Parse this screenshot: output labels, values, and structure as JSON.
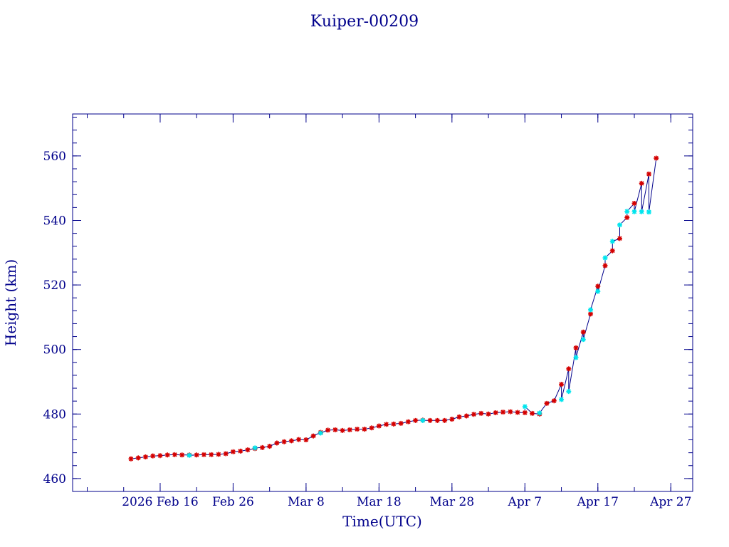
{
  "chart_data": {
    "type": "line",
    "title": "Kuiper-00209",
    "xlabel": "Time(UTC)",
    "ylabel": "Height (km)",
    "x_tick_labels": [
      "2026 Feb 16",
      "Feb 26",
      "Mar  8",
      "Mar 18",
      "Mar 28",
      "Apr  7",
      "Apr 17",
      "Apr 27"
    ],
    "x_tick_dates": [
      "2026-02-16",
      "2026-02-26",
      "2026-03-08",
      "2026-03-18",
      "2026-03-28",
      "2026-04-07",
      "2026-04-17",
      "2026-04-27"
    ],
    "xlim": [
      "2026-02-04",
      "2026-04-30"
    ],
    "y_ticks": [
      460,
      480,
      500,
      520,
      540,
      560
    ],
    "ylim": [
      456,
      573
    ],
    "grid": false,
    "colors": {
      "frame": "#00008b",
      "line": "#00008b",
      "marker_primary": "#d40000",
      "marker_secondary": "#00e5ee"
    },
    "series": [
      {
        "marker_color": "red",
        "points": [
          [
            "2026-02-12",
            466.1
          ],
          [
            "2026-02-13",
            466.4
          ],
          [
            "2026-02-14",
            466.7
          ],
          [
            "2026-02-15",
            467.0
          ],
          [
            "2026-02-16",
            467.1
          ],
          [
            "2026-02-17",
            467.3
          ],
          [
            "2026-02-18",
            467.4
          ],
          [
            "2026-02-19",
            467.3
          ],
          [
            "2026-02-20",
            467.3
          ],
          [
            "2026-02-21",
            467.3
          ],
          [
            "2026-02-22",
            467.4
          ],
          [
            "2026-02-23",
            467.4
          ],
          [
            "2026-02-24",
            467.5
          ],
          [
            "2026-02-25",
            467.7
          ],
          [
            "2026-02-26",
            468.3
          ],
          [
            "2026-02-27",
            468.5
          ],
          [
            "2026-02-28",
            468.9
          ],
          [
            "2026-03-01",
            469.3
          ],
          [
            "2026-03-02",
            469.6
          ],
          [
            "2026-03-03",
            470.0
          ],
          [
            "2026-03-04",
            471.0
          ],
          [
            "2026-03-05",
            471.4
          ],
          [
            "2026-03-06",
            471.7
          ],
          [
            "2026-03-07",
            472.1
          ],
          [
            "2026-03-08",
            472.0
          ],
          [
            "2026-03-09",
            473.2
          ],
          [
            "2026-03-10",
            474.3
          ],
          [
            "2026-03-11",
            475.0
          ],
          [
            "2026-03-12",
            475.1
          ],
          [
            "2026-03-13",
            474.9
          ],
          [
            "2026-03-14",
            475.1
          ],
          [
            "2026-03-15",
            475.3
          ],
          [
            "2026-03-16",
            475.3
          ],
          [
            "2026-03-17",
            475.7
          ],
          [
            "2026-03-18",
            476.3
          ],
          [
            "2026-03-19",
            476.8
          ],
          [
            "2026-03-20",
            476.9
          ],
          [
            "2026-03-21",
            477.1
          ],
          [
            "2026-03-22",
            477.6
          ],
          [
            "2026-03-23",
            478.0
          ],
          [
            "2026-03-24",
            478.1
          ],
          [
            "2026-03-25",
            478.0
          ],
          [
            "2026-03-26",
            478.0
          ],
          [
            "2026-03-27",
            478.0
          ],
          [
            "2026-03-28",
            478.4
          ],
          [
            "2026-03-29",
            479.1
          ],
          [
            "2026-03-30",
            479.4
          ],
          [
            "2026-03-31",
            479.9
          ],
          [
            "2026-04-01",
            480.2
          ],
          [
            "2026-04-02",
            480.0
          ],
          [
            "2026-04-03",
            480.4
          ],
          [
            "2026-04-04",
            480.6
          ],
          [
            "2026-04-05",
            480.7
          ],
          [
            "2026-04-06",
            480.5
          ],
          [
            "2026-04-07",
            480.4
          ],
          [
            "2026-04-08",
            480.2
          ],
          [
            "2026-04-09",
            480.0
          ],
          [
            "2026-04-10",
            483.3
          ],
          [
            "2026-04-11",
            484.1
          ],
          [
            "2026-04-12",
            489.2
          ],
          [
            "2026-04-13",
            494.0
          ],
          [
            "2026-04-14",
            500.5
          ],
          [
            "2026-04-15",
            505.4
          ],
          [
            "2026-04-16",
            511.0
          ],
          [
            "2026-04-17",
            519.6
          ],
          [
            "2026-04-18",
            526.0
          ],
          [
            "2026-04-19",
            530.6
          ],
          [
            "2026-04-20",
            534.4
          ],
          [
            "2026-04-21",
            540.9
          ],
          [
            "2026-04-22",
            545.3
          ],
          [
            "2026-04-23",
            551.5
          ],
          [
            "2026-04-24",
            554.4
          ],
          [
            "2026-04-25",
            559.3
          ]
        ]
      },
      {
        "marker_color": "cyan",
        "points": [
          [
            "2026-02-20",
            467.2
          ],
          [
            "2026-03-01",
            469.5
          ],
          [
            "2026-03-10",
            474.1
          ],
          [
            "2026-03-24",
            478.0
          ],
          [
            "2026-04-07",
            482.3
          ],
          [
            "2026-04-09",
            480.3
          ],
          [
            "2026-04-12",
            484.5
          ],
          [
            "2026-04-13",
            487.0
          ],
          [
            "2026-04-14",
            497.5
          ],
          [
            "2026-04-15",
            503.1
          ],
          [
            "2026-04-16",
            512.3
          ],
          [
            "2026-04-17",
            518.0
          ],
          [
            "2026-04-18",
            528.4
          ],
          [
            "2026-04-19",
            533.5
          ],
          [
            "2026-04-20",
            538.6
          ],
          [
            "2026-04-21",
            542.8
          ],
          [
            "2026-04-22",
            542.7
          ],
          [
            "2026-04-23",
            542.7
          ],
          [
            "2026-04-24",
            542.6
          ]
        ]
      }
    ]
  }
}
